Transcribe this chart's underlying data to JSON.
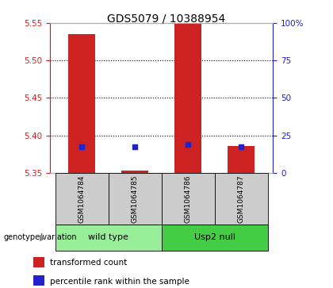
{
  "title": "GDS5079 / 10388954",
  "samples": [
    "GSM1064784",
    "GSM1064785",
    "GSM1064786",
    "GSM1064787"
  ],
  "bar_bottoms": [
    5.35,
    5.35,
    5.35,
    5.35
  ],
  "bar_tops": [
    5.535,
    5.353,
    5.565,
    5.386
  ],
  "percentile_values": [
    5.385,
    5.385,
    5.388,
    5.385
  ],
  "ylim_left": [
    5.35,
    5.55
  ],
  "ylim_right": [
    0,
    100
  ],
  "yticks_left": [
    5.35,
    5.4,
    5.45,
    5.5,
    5.55
  ],
  "yticks_right": [
    0,
    25,
    50,
    75,
    100
  ],
  "ytick_labels_right": [
    "0",
    "25",
    "50",
    "75",
    "100%"
  ],
  "bar_color": "#cc2222",
  "percentile_color": "#2222cc",
  "groups": [
    {
      "label": "wild type",
      "indices": [
        0,
        1
      ],
      "color": "#99ee99"
    },
    {
      "label": "Usp2 null",
      "indices": [
        2,
        3
      ],
      "color": "#44cc44"
    }
  ],
  "group_label": "genotype/variation",
  "legend": [
    {
      "label": "transformed count",
      "color": "#cc2222"
    },
    {
      "label": "percentile rank within the sample",
      "color": "#2222cc"
    }
  ],
  "bar_width": 0.5,
  "sample_area_color": "#cccccc",
  "left_axis_color": "#cc2222",
  "right_axis_color": "#2222cc",
  "grid_yticks": [
    5.4,
    5.45,
    5.5
  ]
}
